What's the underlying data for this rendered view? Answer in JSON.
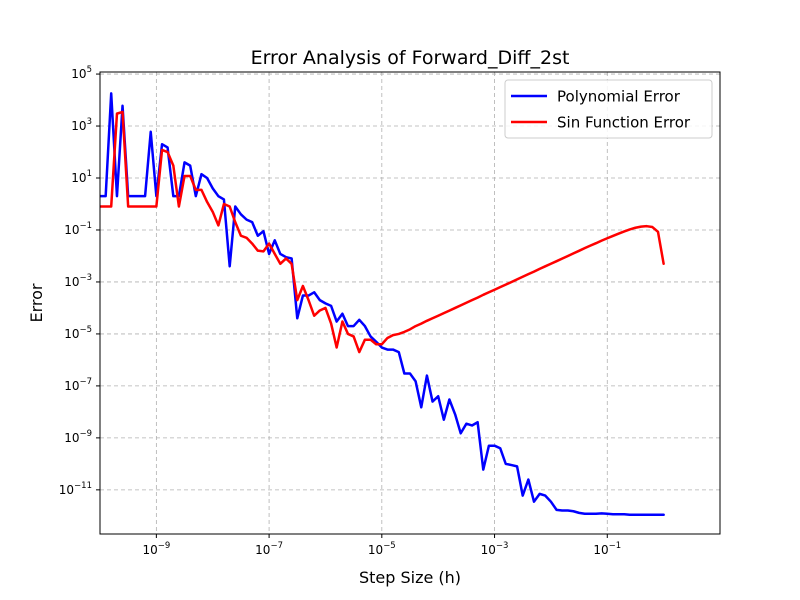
{
  "chart_data": {
    "type": "line",
    "title": "Error Analysis of Forward_Diff_2st",
    "xlabel": "Step Size (h)",
    "ylabel": "Error",
    "xscale": "log",
    "yscale": "log",
    "xlim": [
      1e-10,
      10
    ],
    "ylim": [
      2e-13,
      120000.0
    ],
    "grid": "dashed",
    "legend_position": "top-right",
    "x_ticks": [
      {
        "value": 1e-09,
        "base": "10",
        "exp": "−9"
      },
      {
        "value": 1e-07,
        "base": "10",
        "exp": "−7"
      },
      {
        "value": 1e-05,
        "base": "10",
        "exp": "−5"
      },
      {
        "value": 0.001,
        "base": "10",
        "exp": "−3"
      },
      {
        "value": 0.1,
        "base": "10",
        "exp": "−1"
      }
    ],
    "y_ticks": [
      {
        "value": 100000.0,
        "base": "10",
        "exp": "5"
      },
      {
        "value": 1000.0,
        "base": "10",
        "exp": "3"
      },
      {
        "value": 10.0,
        "base": "10",
        "exp": "1"
      },
      {
        "value": 0.1,
        "base": "10",
        "exp": "−1"
      },
      {
        "value": 0.001,
        "base": "10",
        "exp": "−3"
      },
      {
        "value": 1e-05,
        "base": "10",
        "exp": "−5"
      },
      {
        "value": 1e-07,
        "base": "10",
        "exp": "−7"
      },
      {
        "value": 1e-09,
        "base": "10",
        "exp": "−9"
      },
      {
        "value": 1e-11,
        "base": "10",
        "exp": "−11"
      }
    ],
    "series": [
      {
        "name": "Polynomial Error",
        "color": "#0000ff",
        "points": [
          [
            1e-10,
            2.0
          ],
          [
            1.26e-10,
            2.0
          ],
          [
            1.58e-10,
            18000
          ],
          [
            2e-10,
            2.0
          ],
          [
            2.51e-10,
            6000
          ],
          [
            3.16e-10,
            2.0
          ],
          [
            3.98e-10,
            2.0
          ],
          [
            5.01e-10,
            2.0
          ],
          [
            6.31e-10,
            2.0
          ],
          [
            7.94e-10,
            600
          ],
          [
            1e-09,
            2.0
          ],
          [
            1.26e-09,
            200
          ],
          [
            1.58e-09,
            150
          ],
          [
            2e-09,
            2.0
          ],
          [
            2.51e-09,
            2.0
          ],
          [
            3.16e-09,
            40
          ],
          [
            3.98e-09,
            30
          ],
          [
            5.01e-09,
            2.0
          ],
          [
            6.31e-09,
            14
          ],
          [
            7.94e-09,
            10
          ],
          [
            1e-08,
            4.0
          ],
          [
            1.26e-08,
            2.0
          ],
          [
            1.58e-08,
            1.5
          ],
          [
            2e-08,
            0.004
          ],
          [
            2.51e-08,
            0.8
          ],
          [
            3.16e-08,
            0.4
          ],
          [
            3.98e-08,
            0.25
          ],
          [
            5.01e-08,
            0.2
          ],
          [
            6.31e-08,
            0.06
          ],
          [
            7.94e-08,
            0.09
          ],
          [
            1e-07,
            0.012
          ],
          [
            1.26e-07,
            0.04
          ],
          [
            1.58e-07,
            0.012
          ],
          [
            2e-07,
            0.009
          ],
          [
            2.51e-07,
            0.008
          ],
          [
            3.16e-07,
            4e-05
          ],
          [
            3.98e-07,
            0.0003
          ],
          [
            5.01e-07,
            0.0003
          ],
          [
            6.31e-07,
            0.0004
          ],
          [
            7.94e-07,
            0.0002
          ],
          [
            1e-06,
            0.00015
          ],
          [
            1.26e-06,
            0.00012
          ],
          [
            1.58e-06,
            3e-05
          ],
          [
            2e-06,
            6e-05
          ],
          [
            2.51e-06,
            2e-05
          ],
          [
            3.16e-06,
            2e-05
          ],
          [
            3.98e-06,
            3.5e-05
          ],
          [
            5.01e-06,
            2e-05
          ],
          [
            6.31e-06,
            8e-06
          ],
          [
            7.94e-06,
            5e-06
          ],
          [
            1e-05,
            3e-06
          ],
          [
            1.26e-05,
            2.5e-06
          ],
          [
            1.58e-05,
            2.5e-06
          ],
          [
            2e-05,
            2e-06
          ],
          [
            2.51e-05,
            3e-07
          ],
          [
            3.16e-05,
            3e-07
          ],
          [
            3.98e-05,
            1.5e-07
          ],
          [
            5.01e-05,
            1.5e-08
          ],
          [
            6.31e-05,
            2.5e-07
          ],
          [
            7.94e-05,
            2.5e-08
          ],
          [
            0.0001,
            4e-08
          ],
          [
            0.000126,
            5e-09
          ],
          [
            0.000158,
            3e-08
          ],
          [
            0.0002,
            8e-09
          ],
          [
            0.000251,
            1.5e-09
          ],
          [
            0.000316,
            3.5e-09
          ],
          [
            0.000398,
            3e-09
          ],
          [
            0.000501,
            4e-09
          ],
          [
            0.000631,
            6e-11
          ],
          [
            0.000794,
            5e-10
          ],
          [
            0.001,
            5e-10
          ],
          [
            0.00126,
            4e-10
          ],
          [
            0.00158,
            1e-10
          ],
          [
            0.002,
            9e-11
          ],
          [
            0.00251,
            8e-11
          ],
          [
            0.00316,
            6e-12
          ],
          [
            0.00398,
            2.5e-11
          ],
          [
            0.00501,
            3.5e-12
          ],
          [
            0.00631,
            7e-12
          ],
          [
            0.00794,
            6e-12
          ],
          [
            0.01,
            3.5e-12
          ],
          [
            0.0126,
            1.7e-12
          ],
          [
            0.0158,
            1.6e-12
          ],
          [
            0.02,
            1.6e-12
          ],
          [
            0.0251,
            1.5e-12
          ],
          [
            0.0316,
            1.3e-12
          ],
          [
            0.0398,
            1.2e-12
          ],
          [
            0.0501,
            1.2e-12
          ],
          [
            0.0631,
            1.2e-12
          ],
          [
            0.0794,
            1.25e-12
          ],
          [
            0.1,
            1.2e-12
          ],
          [
            0.126,
            1.15e-12
          ],
          [
            0.158,
            1.15e-12
          ],
          [
            0.2,
            1.15e-12
          ],
          [
            0.251,
            1.1e-12
          ],
          [
            0.316,
            1.1e-12
          ],
          [
            0.398,
            1.1e-12
          ],
          [
            0.501,
            1.1e-12
          ],
          [
            0.631,
            1.1e-12
          ],
          [
            0.794,
            1.1e-12
          ],
          [
            1.0,
            1.1e-12
          ]
        ]
      },
      {
        "name": "Sin Function Error",
        "color": "#ff0000",
        "points": [
          [
            1e-10,
            0.8
          ],
          [
            1.26e-10,
            0.8
          ],
          [
            1.58e-10,
            0.8
          ],
          [
            2e-10,
            3000
          ],
          [
            2.51e-10,
            3500
          ],
          [
            3.16e-10,
            0.8
          ],
          [
            3.98e-10,
            0.8
          ],
          [
            5.01e-10,
            0.8
          ],
          [
            6.31e-10,
            0.8
          ],
          [
            7.94e-10,
            0.8
          ],
          [
            1e-09,
            0.8
          ],
          [
            1.26e-09,
            120
          ],
          [
            1.58e-09,
            100
          ],
          [
            2e-09,
            30
          ],
          [
            2.51e-09,
            0.8
          ],
          [
            3.16e-09,
            12
          ],
          [
            3.98e-09,
            12
          ],
          [
            5.01e-09,
            3.5
          ],
          [
            6.31e-09,
            3.5
          ],
          [
            7.94e-09,
            1.2
          ],
          [
            1e-08,
            0.5
          ],
          [
            1.26e-08,
            0.15
          ],
          [
            1.58e-08,
            1.0
          ],
          [
            2e-08,
            0.8
          ],
          [
            2.51e-08,
            0.2
          ],
          [
            3.16e-08,
            0.06
          ],
          [
            3.98e-08,
            0.05
          ],
          [
            5.01e-08,
            0.03
          ],
          [
            6.31e-08,
            0.016
          ],
          [
            7.94e-08,
            0.015
          ],
          [
            1e-07,
            0.03
          ],
          [
            1.26e-07,
            0.012
          ],
          [
            1.58e-07,
            0.005
          ],
          [
            2e-07,
            0.008
          ],
          [
            2.51e-07,
            0.005
          ],
          [
            3.16e-07,
            0.0002
          ],
          [
            3.98e-07,
            0.0007
          ],
          [
            5.01e-07,
            0.0002
          ],
          [
            6.31e-07,
            5e-05
          ],
          [
            7.94e-07,
            8e-05
          ],
          [
            1e-06,
            0.0001
          ],
          [
            1.26e-06,
            2.5e-05
          ],
          [
            1.58e-06,
            3e-06
          ],
          [
            2e-06,
            3e-05
          ],
          [
            2.51e-06,
            1e-05
          ],
          [
            3.16e-06,
            8e-06
          ],
          [
            3.98e-06,
            2e-06
          ],
          [
            5.01e-06,
            6e-06
          ],
          [
            6.31e-06,
            6e-06
          ],
          [
            7.94e-06,
            4e-06
          ],
          [
            1e-05,
            4e-06
          ],
          [
            1.26e-05,
            7e-06
          ],
          [
            1.58e-05,
            9e-06
          ],
          [
            2e-05,
            1e-05
          ],
          [
            2.51e-05,
            1.2e-05
          ],
          [
            3.16e-05,
            1.5e-05
          ],
          [
            3.98e-05,
            2e-05
          ],
          [
            5.01e-05,
            2.5e-05
          ],
          [
            6.31e-05,
            3.2e-05
          ],
          [
            7.94e-05,
            4e-05
          ],
          [
            0.0001,
            5e-05
          ],
          [
            0.000126,
            6.3e-05
          ],
          [
            0.000158,
            7.9e-05
          ],
          [
            0.0002,
            0.0001
          ],
          [
            0.000251,
            0.000126
          ],
          [
            0.000316,
            0.000158
          ],
          [
            0.000398,
            0.0002
          ],
          [
            0.000501,
            0.00025
          ],
          [
            0.000631,
            0.00032
          ],
          [
            0.000794,
            0.0004
          ],
          [
            0.001,
            0.0005
          ],
          [
            0.00126,
            0.00063
          ],
          [
            0.00158,
            0.00079
          ],
          [
            0.002,
            0.001
          ],
          [
            0.00251,
            0.00126
          ],
          [
            0.00316,
            0.00158
          ],
          [
            0.00398,
            0.002
          ],
          [
            0.00501,
            0.0025
          ],
          [
            0.00631,
            0.0032
          ],
          [
            0.00794,
            0.004
          ],
          [
            0.01,
            0.005
          ],
          [
            0.0126,
            0.0063
          ],
          [
            0.0158,
            0.0079
          ],
          [
            0.02,
            0.01
          ],
          [
            0.0251,
            0.0126
          ],
          [
            0.0316,
            0.0158
          ],
          [
            0.0398,
            0.02
          ],
          [
            0.0501,
            0.025
          ],
          [
            0.0631,
            0.031
          ],
          [
            0.0794,
            0.039
          ],
          [
            0.1,
            0.048
          ],
          [
            0.126,
            0.059
          ],
          [
            0.158,
            0.072
          ],
          [
            0.2,
            0.088
          ],
          [
            0.251,
            0.105
          ],
          [
            0.316,
            0.122
          ],
          [
            0.398,
            0.135
          ],
          [
            0.501,
            0.14
          ],
          [
            0.631,
            0.13
          ],
          [
            0.794,
            0.085
          ],
          [
            1.0,
            0.005
          ]
        ]
      }
    ]
  }
}
